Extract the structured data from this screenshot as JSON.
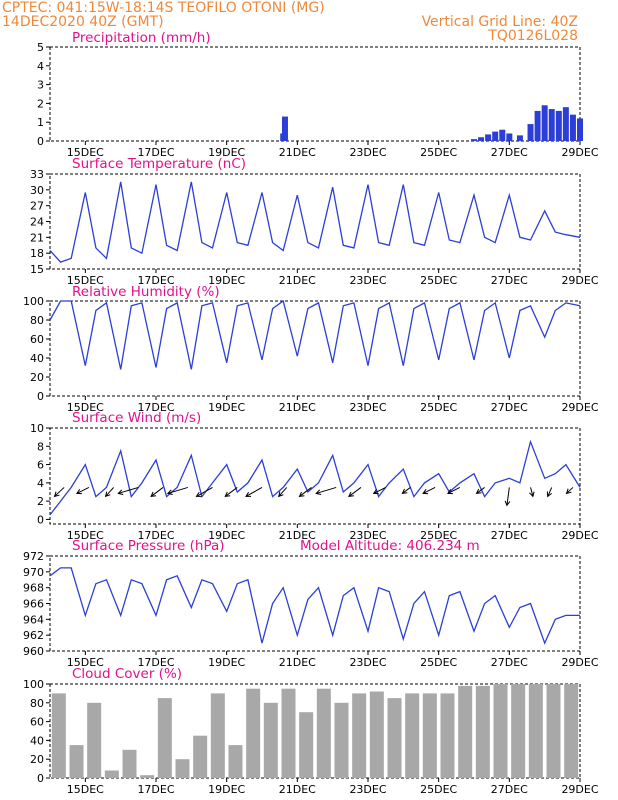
{
  "header": {
    "line1": "CPTEC:   041:15W-18:14S   TEOFILO OTONI (MG)",
    "line2": "14DEC2020 40Z (GMT)",
    "grid_note": "Vertical Grid Line: 40Z",
    "code": "TQ0126L028"
  },
  "colors": {
    "header": "#f0883a",
    "title": "#e0128c",
    "line": "#2b3fd6",
    "bar": "#2b3fd6",
    "cloud": "#a8a8a8"
  },
  "x_tick_labels": [
    "15DEC",
    "17DEC",
    "19DEC",
    "21DEC",
    "23DEC",
    "25DEC",
    "27DEC",
    "29DEC"
  ],
  "chart_data": [
    {
      "type": "bar",
      "title": "Precipitation (mm/h)",
      "x": [
        20.6,
        20.65,
        26.0,
        26.2,
        26.4,
        26.6,
        26.8,
        27.0,
        27.3,
        27.6,
        27.8,
        28.0,
        28.2,
        28.4,
        28.6,
        28.8,
        29.0
      ],
      "values": [
        0.4,
        1.3,
        0.1,
        0.2,
        0.35,
        0.5,
        0.6,
        0.4,
        0.3,
        0.9,
        1.6,
        1.9,
        1.7,
        1.6,
        1.8,
        1.4,
        1.2
      ],
      "xlim": [
        14,
        29
      ],
      "ylim": [
        0,
        5
      ],
      "yticks": [
        0,
        1,
        2,
        3,
        4,
        5
      ]
    },
    {
      "type": "line",
      "title": "Surface Temperature (nC)",
      "x": [
        14.0,
        14.3,
        14.6,
        15.0,
        15.3,
        15.6,
        16.0,
        16.3,
        16.6,
        17.0,
        17.3,
        17.6,
        18.0,
        18.3,
        18.6,
        19.0,
        19.3,
        19.6,
        20.0,
        20.3,
        20.6,
        21.0,
        21.3,
        21.6,
        22.0,
        22.3,
        22.6,
        23.0,
        23.3,
        23.6,
        24.0,
        24.3,
        24.6,
        25.0,
        25.3,
        25.6,
        26.0,
        26.3,
        26.6,
        27.0,
        27.3,
        27.6,
        28.0,
        28.3,
        28.6,
        29.0
      ],
      "values": [
        18.5,
        16.3,
        17.0,
        29.5,
        19.0,
        17.0,
        31.5,
        19.0,
        18.0,
        31.0,
        19.5,
        18.5,
        31.5,
        20.0,
        19.0,
        29.5,
        20.0,
        19.5,
        29.5,
        20.0,
        18.5,
        29.0,
        20.0,
        19.0,
        30.5,
        19.5,
        19.0,
        31.0,
        20.0,
        19.5,
        31.0,
        20.0,
        19.5,
        29.5,
        20.5,
        20.0,
        29.0,
        21.0,
        20.0,
        29.0,
        21.0,
        20.5,
        26.0,
        22.0,
        21.5,
        21.0
      ],
      "xlim": [
        14,
        29
      ],
      "ylim": [
        15,
        33
      ],
      "yticks": [
        15,
        18,
        21,
        24,
        27,
        30,
        33
      ]
    },
    {
      "type": "line",
      "title": "Relative Humidity (%)",
      "x": [
        14.0,
        14.3,
        14.6,
        15.0,
        15.3,
        15.6,
        16.0,
        16.3,
        16.6,
        17.0,
        17.3,
        17.6,
        18.0,
        18.3,
        18.6,
        19.0,
        19.3,
        19.6,
        20.0,
        20.3,
        20.6,
        21.0,
        21.3,
        21.6,
        22.0,
        22.3,
        22.6,
        23.0,
        23.3,
        23.6,
        24.0,
        24.3,
        24.6,
        25.0,
        25.3,
        25.6,
        26.0,
        26.3,
        26.6,
        27.0,
        27.3,
        27.6,
        28.0,
        28.3,
        28.6,
        29.0
      ],
      "values": [
        80,
        100,
        100,
        32,
        90,
        98,
        28,
        95,
        98,
        30,
        92,
        98,
        28,
        95,
        98,
        35,
        95,
        98,
        38,
        92,
        100,
        42,
        92,
        98,
        35,
        95,
        98,
        32,
        92,
        98,
        32,
        92,
        98,
        38,
        92,
        98,
        38,
        90,
        98,
        40,
        90,
        95,
        62,
        90,
        98,
        95
      ],
      "xlim": [
        14,
        29
      ],
      "ylim": [
        0,
        100
      ],
      "yticks": [
        0,
        20,
        40,
        60,
        80,
        100
      ]
    },
    {
      "type": "line",
      "title": "Surface Wind (m/s)",
      "x": [
        14.0,
        14.3,
        14.6,
        15.0,
        15.3,
        15.6,
        16.0,
        16.3,
        16.6,
        17.0,
        17.3,
        17.6,
        18.0,
        18.3,
        18.6,
        19.0,
        19.3,
        19.6,
        20.0,
        20.3,
        20.6,
        21.0,
        21.3,
        21.6,
        22.0,
        22.3,
        22.6,
        23.0,
        23.3,
        23.6,
        24.0,
        24.3,
        24.6,
        25.0,
        25.3,
        25.6,
        26.0,
        26.3,
        26.6,
        27.0,
        27.3,
        27.6,
        28.0,
        28.3,
        28.6,
        29.0
      ],
      "values": [
        0.5,
        2.0,
        3.5,
        6.0,
        2.5,
        3.5,
        7.5,
        2.5,
        4.0,
        6.5,
        2.5,
        3.5,
        7.0,
        2.5,
        4.0,
        6.0,
        3.0,
        4.0,
        6.5,
        2.5,
        3.5,
        5.5,
        3.0,
        4.0,
        7.0,
        3.0,
        4.0,
        6.0,
        2.5,
        4.0,
        5.5,
        2.5,
        4.0,
        5.0,
        3.0,
        4.0,
        5.0,
        2.5,
        4.0,
        4.5,
        4.0,
        8.5,
        4.5,
        5.0,
        6.0,
        3.5
      ],
      "wind_arrow_x": [
        14.4,
        15.1,
        15.8,
        16.5,
        17.2,
        17.9,
        18.6,
        19.3,
        20.0,
        20.7,
        21.4,
        22.1,
        22.8,
        23.5,
        24.2,
        24.9,
        25.6,
        26.3,
        27.0,
        27.6,
        28.2,
        28.8
      ],
      "wind_arrow_u": [
        1.2,
        1.5,
        1.0,
        2.5,
        1.5,
        2.5,
        2.0,
        1.5,
        2.0,
        1.0,
        1.5,
        2.5,
        1.5,
        1.5,
        1.0,
        1.5,
        1.5,
        1.0,
        0.3,
        -0.3,
        0.5,
        0.8
      ],
      "wind_arrow_v": [
        1.5,
        1.0,
        1.5,
        1.0,
        1.5,
        1.0,
        1.5,
        1.5,
        1.5,
        1.5,
        1.5,
        1.0,
        1.5,
        1.0,
        1.0,
        1.0,
        1.0,
        1.0,
        3.0,
        1.5,
        1.5,
        1.0
      ],
      "xlim": [
        14,
        29
      ],
      "ylim": [
        -0.5,
        10
      ],
      "yticks": [
        0,
        2,
        4,
        6,
        8,
        10
      ]
    },
    {
      "type": "line",
      "title": "Surface Pressure (hPa)",
      "annotation": "Model Altitude: 406.234 m",
      "x": [
        14.0,
        14.3,
        14.6,
        15.0,
        15.3,
        15.6,
        16.0,
        16.3,
        16.6,
        17.0,
        17.3,
        17.6,
        18.0,
        18.3,
        18.6,
        19.0,
        19.3,
        19.6,
        20.0,
        20.3,
        20.6,
        21.0,
        21.3,
        21.6,
        22.0,
        22.3,
        22.6,
        23.0,
        23.3,
        23.6,
        24.0,
        24.3,
        24.6,
        25.0,
        25.3,
        25.6,
        26.0,
        26.3,
        26.6,
        27.0,
        27.3,
        27.6,
        28.0,
        28.3,
        28.6,
        29.0
      ],
      "values": [
        969.5,
        970.5,
        970.5,
        964.5,
        968.5,
        969.0,
        964.5,
        969.0,
        968.5,
        964.5,
        969.0,
        969.5,
        965.5,
        969.0,
        968.5,
        965.0,
        968.5,
        969.0,
        961.0,
        966.0,
        968.0,
        962.0,
        966.5,
        968.0,
        962.0,
        967.0,
        968.0,
        962.5,
        968.0,
        967.5,
        961.5,
        966.0,
        967.5,
        962.0,
        967.0,
        967.5,
        962.5,
        966.0,
        967.0,
        963.0,
        965.5,
        966.0,
        961.0,
        964.0,
        964.5,
        964.5
      ],
      "xlim": [
        14,
        29
      ],
      "ylim": [
        960,
        972
      ],
      "yticks": [
        960,
        962,
        964,
        966,
        968,
        970,
        972
      ]
    },
    {
      "type": "bar",
      "title": "Cloud Cover (%)",
      "x": [
        14.25,
        14.75,
        15.25,
        15.75,
        16.25,
        16.75,
        17.25,
        17.75,
        18.25,
        18.75,
        19.25,
        19.75,
        20.25,
        20.75,
        21.25,
        21.75,
        22.25,
        22.75,
        23.25,
        23.75,
        24.25,
        24.75,
        25.25,
        25.75,
        26.25,
        26.75,
        27.25,
        27.75,
        28.25,
        28.75
      ],
      "values": [
        90,
        35,
        80,
        8,
        30,
        3,
        85,
        20,
        45,
        90,
        35,
        95,
        80,
        95,
        70,
        95,
        80,
        90,
        92,
        85,
        90,
        90,
        90,
        98,
        98,
        100,
        100,
        100,
        100,
        100
      ],
      "xlim": [
        14,
        29
      ],
      "ylim": [
        0,
        100
      ],
      "yticks": [
        0,
        20,
        40,
        60,
        80,
        100
      ]
    }
  ]
}
